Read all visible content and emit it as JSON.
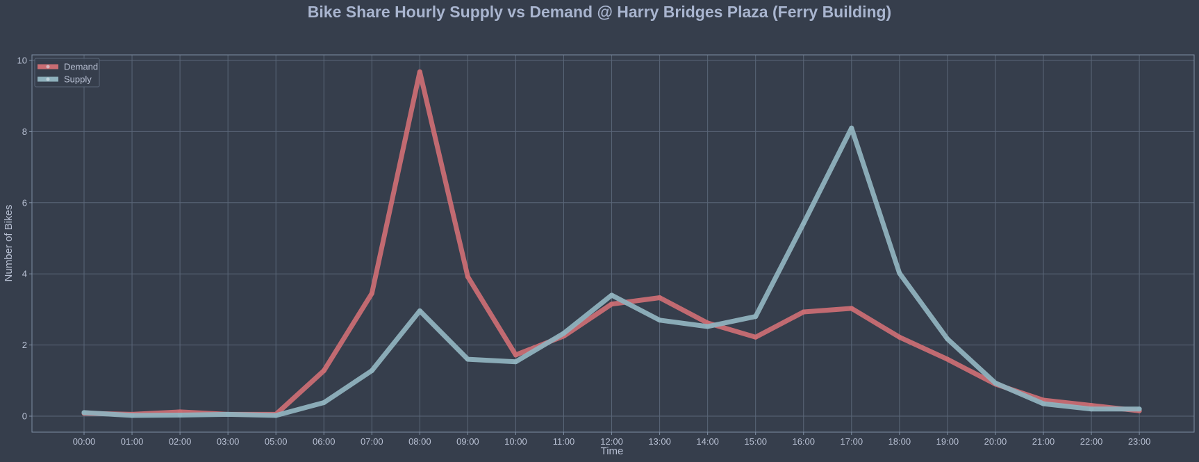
{
  "colors": {
    "background": "#363e4c",
    "axes_face": "#363e4c",
    "grid": "#5a6678",
    "spine": "#7f8ea3",
    "text": "#b8c0d3",
    "title": "#a9b5cf",
    "demand": "#c96d73",
    "supply": "#8fb1bd"
  },
  "chart_data": {
    "type": "line",
    "title": "Bike Share Hourly Supply vs Demand @ Harry Bridges Plaza (Ferry Building)",
    "xlabel": "Time",
    "ylabel": "Number of Bikes",
    "categories": [
      "00:00",
      "01:00",
      "02:00",
      "03:00",
      "05:00",
      "06:00",
      "07:00",
      "08:00",
      "09:00",
      "10:00",
      "11:00",
      "12:00",
      "13:00",
      "14:00",
      "15:00",
      "16:00",
      "17:00",
      "18:00",
      "19:00",
      "20:00",
      "21:00",
      "22:00",
      "23:00"
    ],
    "yticks": [
      0,
      2,
      4,
      6,
      8,
      10
    ],
    "ylim": [
      -0.45,
      10.15
    ],
    "grid": true,
    "legend_position": "top-left",
    "series": [
      {
        "name": "Demand",
        "color_key": "demand",
        "values": [
          0.08,
          0.05,
          0.12,
          0.05,
          0.05,
          1.28,
          3.45,
          9.68,
          3.92,
          1.72,
          2.25,
          3.15,
          3.33,
          2.62,
          2.22,
          2.93,
          3.03,
          2.22,
          1.6,
          0.9,
          0.45,
          0.3,
          0.15
        ]
      },
      {
        "name": "Supply",
        "color_key": "supply",
        "values": [
          0.1,
          0.02,
          0.03,
          0.05,
          0.02,
          0.38,
          1.28,
          2.96,
          1.6,
          1.53,
          2.33,
          3.4,
          2.7,
          2.52,
          2.8,
          5.42,
          8.1,
          4.02,
          2.17,
          0.93,
          0.35,
          0.2,
          0.2
        ]
      }
    ]
  }
}
